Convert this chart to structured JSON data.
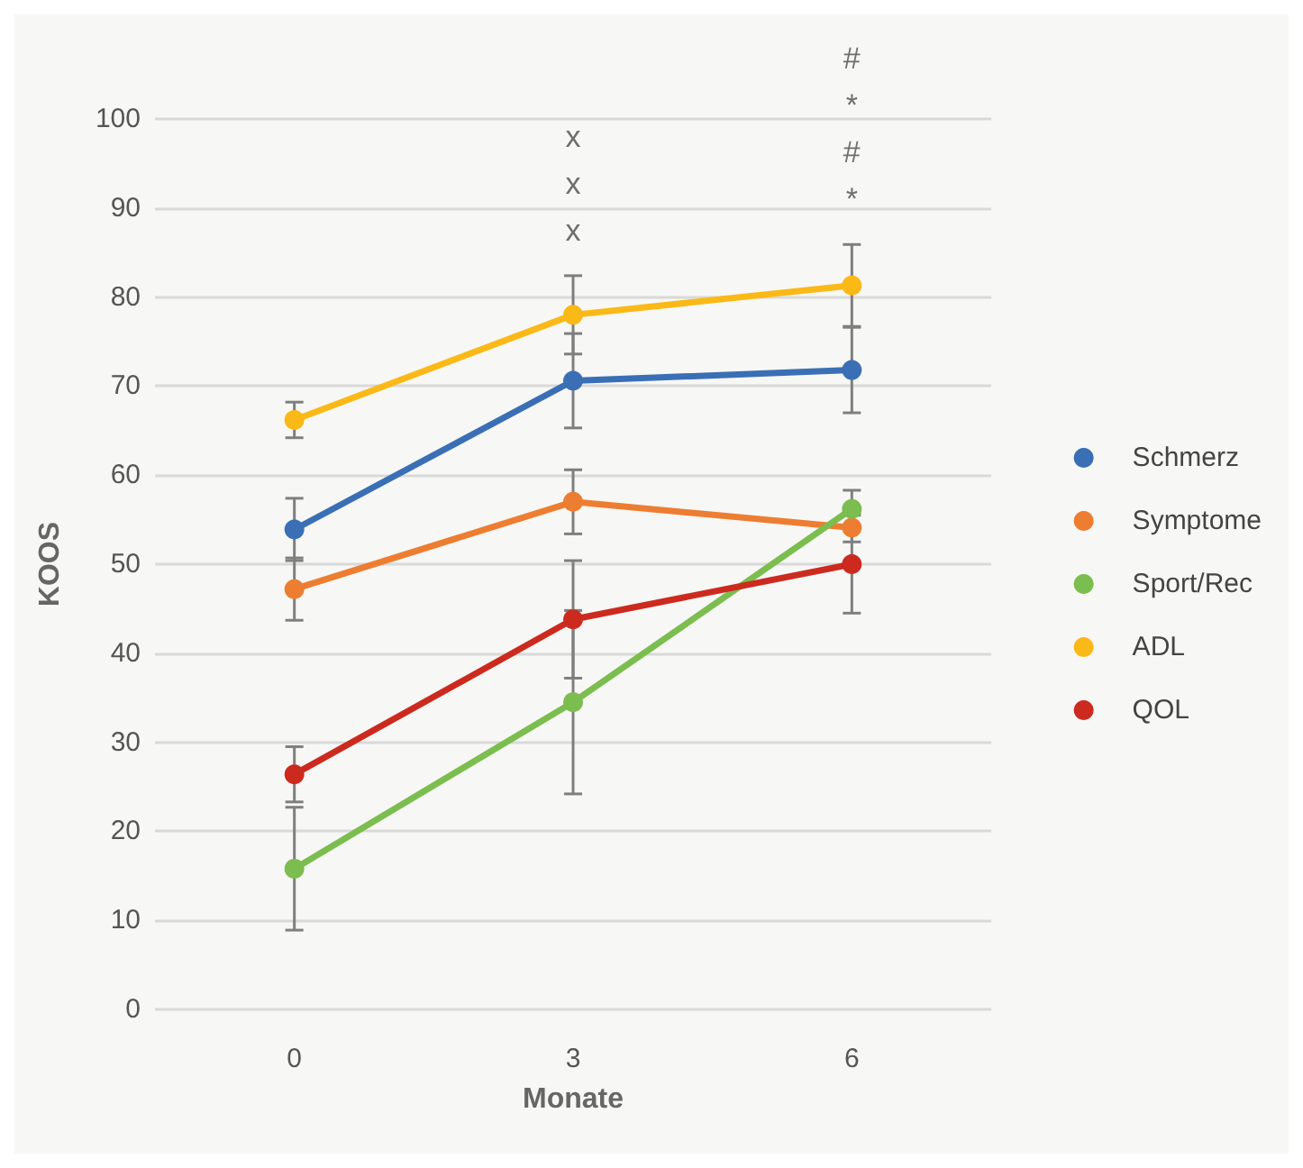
{
  "chart_data": {
    "type": "line",
    "xlabel": "Monate",
    "ylabel": "KOOS",
    "categories": [
      "0",
      "3",
      "6"
    ],
    "series": [
      {
        "name": "Schmerz",
        "color": "#3a6fb5",
        "values": [
          53.9,
          70.6,
          71.8
        ],
        "errors": [
          3.5,
          5.3,
          4.8
        ]
      },
      {
        "name": "Symptome",
        "color": "#ed7d31",
        "values": [
          47.2,
          57.0,
          54.1
        ],
        "errors": [
          3.5,
          3.6,
          1.6
        ]
      },
      {
        "name": "Sport/Rec",
        "color": "#7cbd4f",
        "values": [
          15.8,
          34.5,
          56.2
        ],
        "errors": [
          6.9,
          10.3,
          2.1
        ]
      },
      {
        "name": "ADL",
        "color": "#fbb917",
        "values": [
          66.2,
          78.0,
          81.3
        ],
        "errors": [
          2.0,
          4.4,
          4.6
        ]
      },
      {
        "name": "QOL",
        "color": "#cc2a1f",
        "values": [
          26.4,
          43.8,
          50.0
        ],
        "errors": [
          3.1,
          6.6,
          5.5
        ]
      }
    ],
    "annotations": [
      "x\nx\nx",
      "#\n*\n#\n*"
    ],
    "ylim": [
      0,
      100
    ],
    "yticks": [
      0,
      10,
      20,
      30,
      40,
      50,
      60,
      70,
      80,
      90,
      100
    ],
    "grid": "y",
    "legend": "right",
    "marker": "circle",
    "line_style": "solid"
  }
}
